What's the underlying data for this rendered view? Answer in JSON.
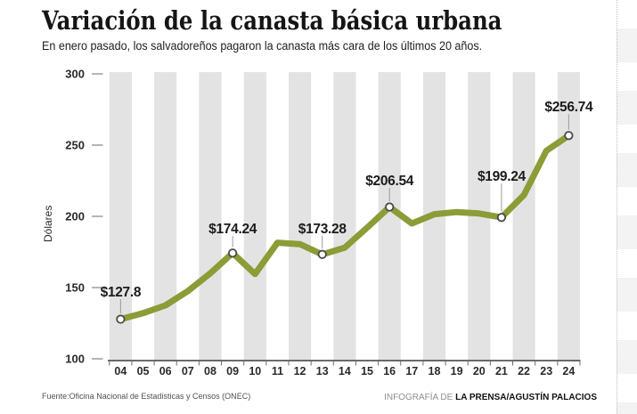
{
  "header": {
    "title": "Variación de la canasta básica urbana",
    "subtitle": "En enero pasado, los salvadoreños pagaron la canasta más cara de los últimos 20 años."
  },
  "footer": {
    "source": "Fuente:Oficina Nacional de Estadisticas y Censos (ONEC)",
    "credit_prefix": "INFOGRAFÍA DE ",
    "credit_bold": "LA PRENSA/AGUSTÍN PALACIOS"
  },
  "chart_data": {
    "type": "line",
    "title": "Variación de la canasta básica urbana",
    "xlabel": "",
    "ylabel": "Dólares",
    "x_labels": [
      "04",
      "05",
      "06",
      "07",
      "08",
      "09",
      "10",
      "11",
      "12",
      "13",
      "14",
      "15",
      "16",
      "17",
      "18",
      "19",
      "20",
      "21",
      "22",
      "23",
      "24"
    ],
    "values": [
      127.8,
      132,
      137.5,
      147.5,
      160,
      174.24,
      159.5,
      181.5,
      180.5,
      173.28,
      178,
      192,
      206.54,
      195,
      201.5,
      203,
      202,
      199.24,
      215,
      246,
      256.74
    ],
    "ylim": [
      100,
      300
    ],
    "y_ticks": [
      100,
      150,
      200,
      250,
      300
    ],
    "grid": "alternating vertical gray bands centered on even years",
    "legend": "none",
    "annotations": [
      {
        "x": "04",
        "value": 127.8,
        "label": "$127.8"
      },
      {
        "x": "09",
        "value": 174.24,
        "label": "$174.24"
      },
      {
        "x": "13",
        "value": 173.28,
        "label": "$173.28"
      },
      {
        "x": "16",
        "value": 206.54,
        "label": "$206.54"
      },
      {
        "x": "21",
        "value": 199.24,
        "label": "$199.24"
      },
      {
        "x": "24",
        "value": 256.74,
        "label": "$256.74"
      }
    ],
    "colors": {
      "line": "#8c9c36",
      "band": "#e3e3e3",
      "axis": "#3c3c3c",
      "tick": "#b5b5b5",
      "label_text": "#1b1b1b",
      "marker_fill": "#ffffff",
      "marker_ring": "#4a4a4a",
      "leader": "#9b9b9b"
    }
  }
}
